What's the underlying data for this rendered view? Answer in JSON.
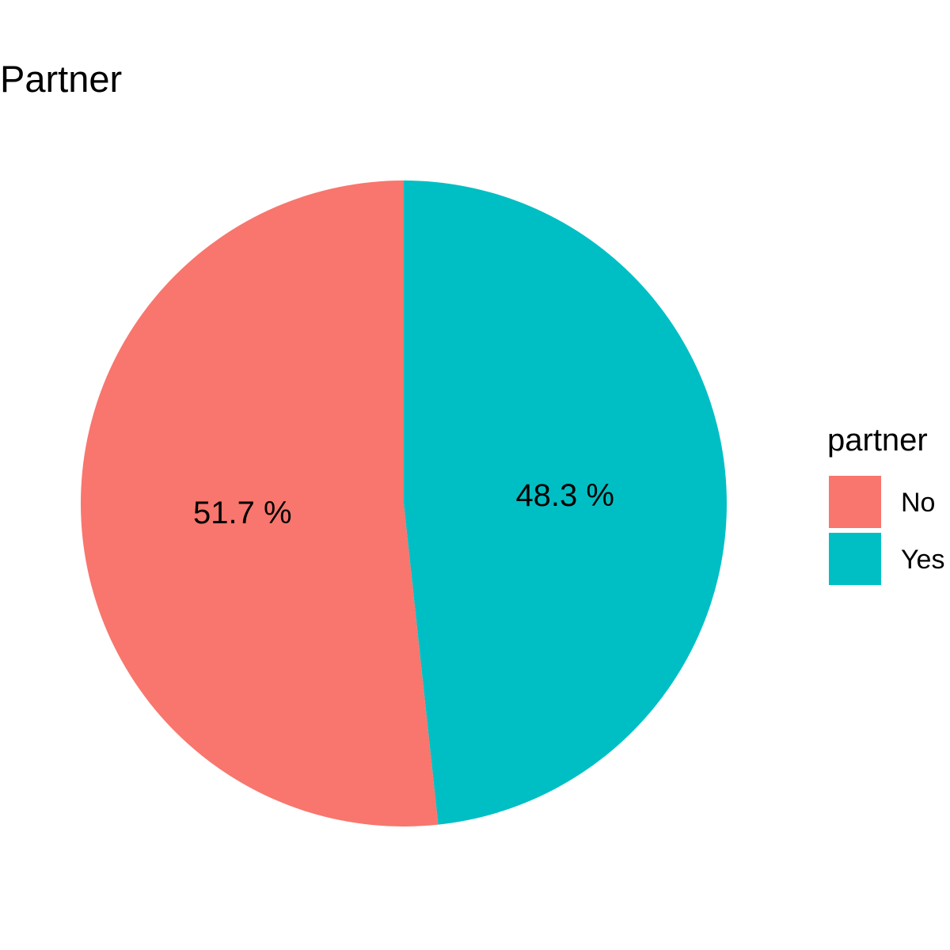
{
  "chart_data": {
    "type": "pie",
    "title": "Partner",
    "categories": [
      "No",
      "Yes"
    ],
    "values": [
      51.7,
      48.3
    ],
    "labels": [
      "51.7 %",
      "48.3 %"
    ],
    "colors": [
      "#F8766D",
      "#00BFC4"
    ],
    "legend": {
      "title": "partner",
      "entries": [
        "No",
        "Yes"
      ],
      "placement": "right"
    }
  }
}
